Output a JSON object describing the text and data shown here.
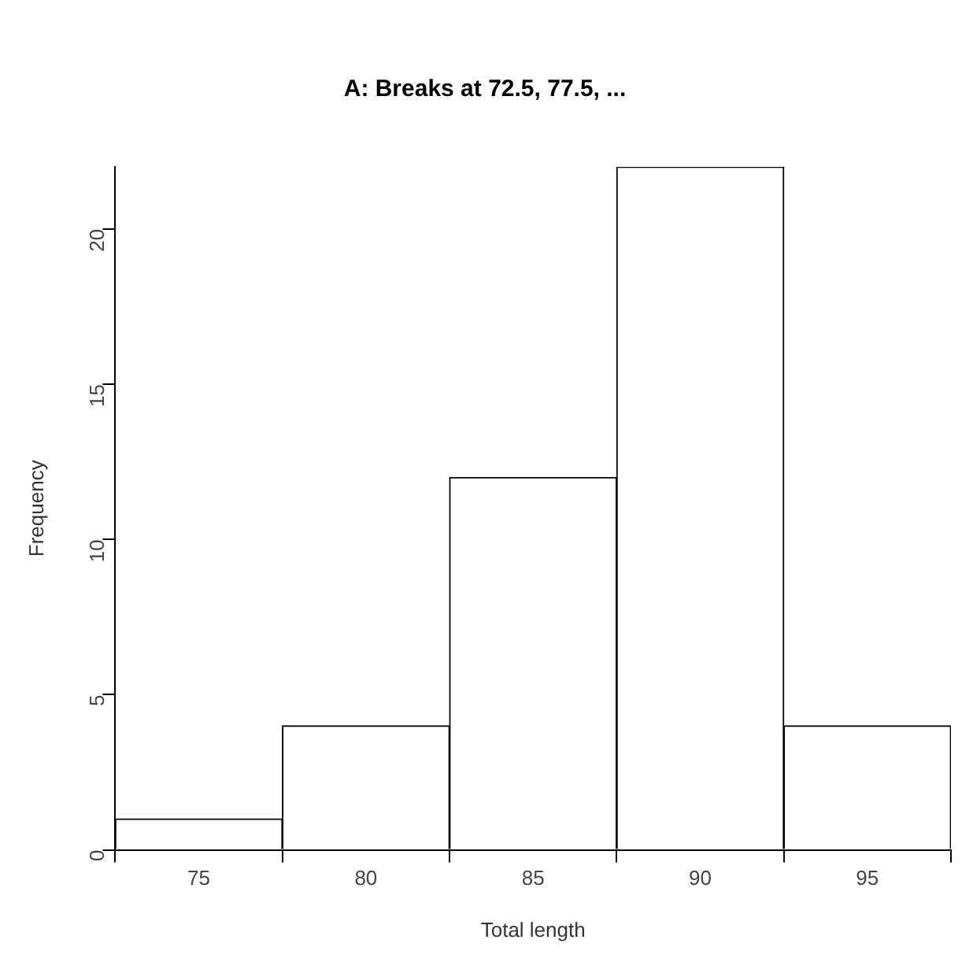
{
  "chart_data": {
    "type": "histogram",
    "title": "A: Breaks at 72.5, 77.5, ...",
    "xlabel": "Total length",
    "ylabel": "Frequency",
    "bins": [
      72.5,
      77.5,
      82.5,
      87.5,
      92.5,
      97.5
    ],
    "values": [
      1,
      4,
      12,
      22,
      4
    ],
    "color": "#ffffff",
    "xlim": [
      72.5,
      97.5
    ],
    "xticks": [
      75,
      80,
      85,
      90,
      95
    ],
    "ylim": [
      0,
      22
    ],
    "yticks": [
      0,
      5,
      10,
      15,
      20
    ],
    "grid": false,
    "legend": false
  }
}
